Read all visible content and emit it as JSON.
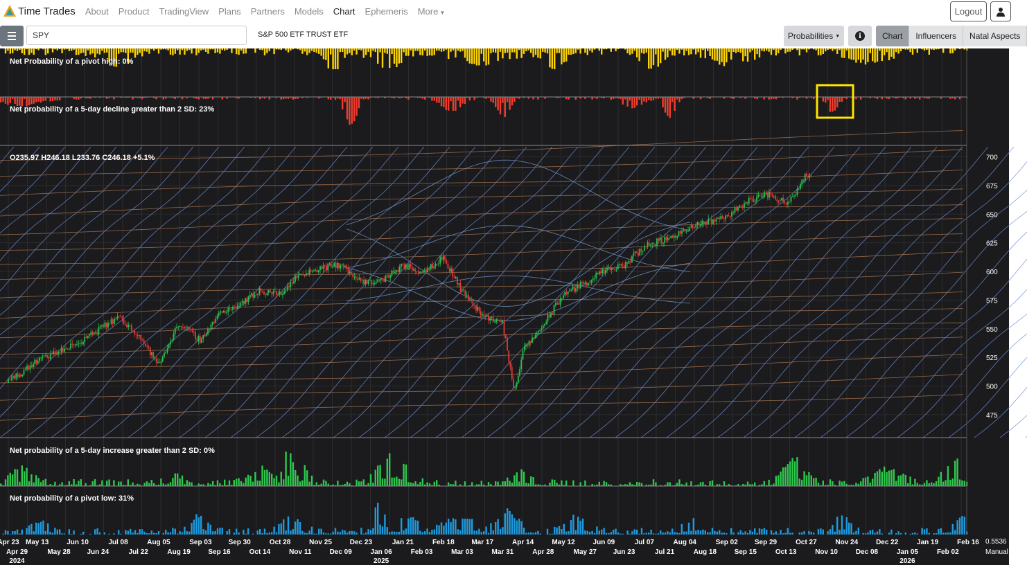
{
  "nav": {
    "brand": "Time Trades",
    "links": [
      "About",
      "Product",
      "TradingView",
      "Plans",
      "Partners",
      "Models",
      "Chart",
      "Ephemeris",
      "More"
    ],
    "active": "Chart",
    "logout": "Logout",
    "user_icon": "user-icon"
  },
  "toolbar": {
    "menu_icon": "hamburger-icon",
    "symbol_value": "SPY",
    "symbol_name": "S&P 500 ETF TRUST ETF",
    "probabilities_label": "Probabilities",
    "info_icon": "info-icon",
    "tabs": [
      "Chart",
      "Influencers",
      "Natal Aspects"
    ],
    "active_tab": "Chart"
  },
  "panels": {
    "pivot_high_label": "Net Probability of a pivot high: 0%",
    "decline_label": "Net probability of a 5-day decline greater than 2 SD: 23%",
    "ohlc_label": "O235.97 H246.18 L233.76 C246.18 +5.1%",
    "increase_label": "Net probability of a 5-day increase greater than 2 SD: 0%",
    "pivot_low_label": "Net probability of a pivot low: 31%"
  },
  "right_axis": {
    "bottom_value": "0.5536",
    "bottom_mode": "Manual"
  },
  "colors": {
    "background": "#1b1b1d",
    "pivot_high": "#ffd400",
    "decline": "#ef3d2d",
    "increase": "#2ec94c",
    "pivot_low": "#1d9be0",
    "candle_up": "#27c24c",
    "candle_down": "#e53935",
    "highlight": "#ffe600"
  },
  "chart_data": {
    "type": "candlestick",
    "ylim": [
      455,
      710
    ],
    "y_ticks": [
      475,
      500,
      525,
      550,
      575,
      600,
      625,
      650,
      675,
      700
    ],
    "x_dates_top": [
      "Apr 23",
      "May 13",
      "Jun 10",
      "Jul 08",
      "Aug 05",
      "Sep 03",
      "Sep 30",
      "Oct 28",
      "Nov 25",
      "Dec 23",
      "Jan 21",
      "Feb 18",
      "Mar 17",
      "Apr 14",
      "May 12",
      "Jun 09",
      "Jul 07",
      "Aug 04",
      "Sep 02",
      "Sep 29",
      "Oct 27",
      "Nov 24",
      "Dec 22",
      "Jan 19",
      "Feb 16"
    ],
    "x_dates_bottom": [
      "Apr 29",
      "May 28",
      "Jun 24",
      "Jul 22",
      "Aug 19",
      "Sep 16",
      "Oct 14",
      "Nov 11",
      "Dec 09",
      "Jan 06",
      "Feb 03",
      "Mar 03",
      "Mar 31",
      "Apr 28",
      "May 27",
      "Jun 23",
      "Jul 21",
      "Aug 18",
      "Sep 15",
      "Oct 13",
      "Nov 10",
      "Dec 08",
      "Jan 05",
      "Feb 02"
    ],
    "years": [
      {
        "label": "2024",
        "date": "Apr 29"
      },
      {
        "label": "2025",
        "date": "Jan 06"
      },
      {
        "label": "2026",
        "date": "Jan 05"
      }
    ],
    "price_path": [
      [
        "Apr 23",
        503
      ],
      [
        "May 13",
        522
      ],
      [
        "Jun 10",
        537
      ],
      [
        "Jul 08",
        560
      ],
      [
        "Jul 22",
        545
      ],
      [
        "Aug 05",
        518
      ],
      [
        "Aug 19",
        555
      ],
      [
        "Sep 03",
        540
      ],
      [
        "Sep 16",
        563
      ],
      [
        "Sep 30",
        572
      ],
      [
        "Oct 14",
        583
      ],
      [
        "Oct 28",
        580
      ],
      [
        "Nov 11",
        598
      ],
      [
        "Nov 25",
        603
      ],
      [
        "Dec 09",
        606
      ],
      [
        "Dec 23",
        590
      ],
      [
        "Jan 06",
        592
      ],
      [
        "Jan 21",
        605
      ],
      [
        "Feb 03",
        600
      ],
      [
        "Feb 18",
        612
      ],
      [
        "Mar 03",
        583
      ],
      [
        "Mar 17",
        562
      ],
      [
        "Mar 31",
        555
      ],
      [
        "Apr 08",
        495
      ],
      [
        "Apr 14",
        530
      ],
      [
        "Apr 28",
        553
      ],
      [
        "May 12",
        580
      ],
      [
        "May 27",
        590
      ],
      [
        "Jun 09",
        600
      ],
      [
        "Jun 23",
        605
      ],
      [
        "Jul 07",
        622
      ],
      [
        "Jul 21",
        628
      ],
      [
        "Aug 04",
        635
      ],
      [
        "Aug 18",
        643
      ],
      [
        "Sep 02",
        648
      ],
      [
        "Sep 15",
        660
      ],
      [
        "Sep 29",
        668
      ],
      [
        "Oct 13",
        660
      ],
      [
        "Oct 20",
        670
      ],
      [
        "Oct 27",
        685
      ],
      [
        "Oct 31",
        680
      ]
    ]
  }
}
